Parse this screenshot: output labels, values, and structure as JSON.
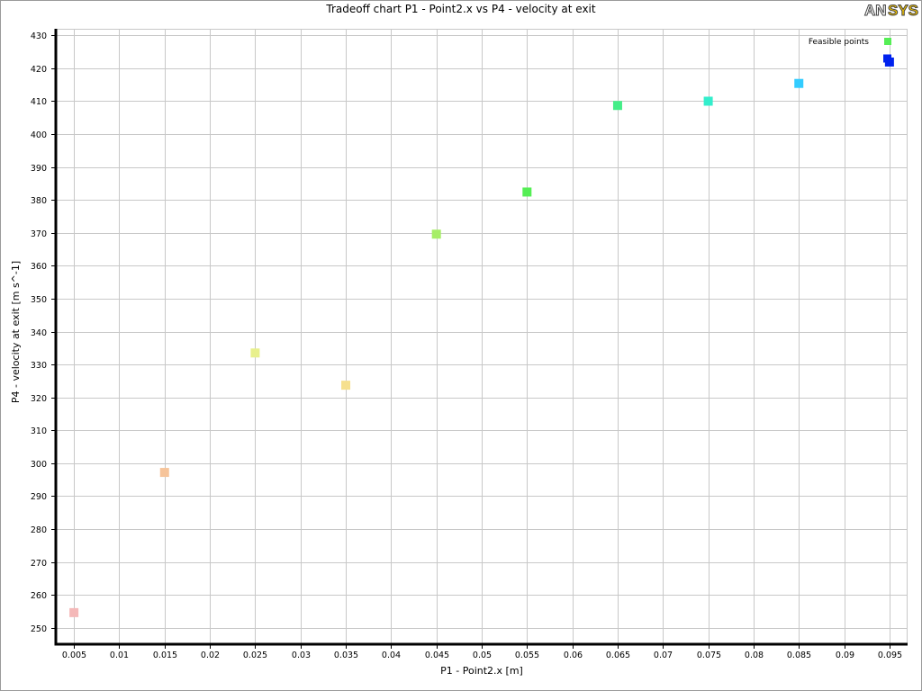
{
  "chart_data": {
    "type": "scatter",
    "title": "Tradeoff chart P1 - Point2.x vs P4 - velocity at exit",
    "xlabel": "P1 - Point2.x  [m]",
    "ylabel": "P4 - velocity at exit  [m s^-1]",
    "xlim": [
      0.003,
      0.097
    ],
    "ylim": [
      245,
      432
    ],
    "x_ticks": [
      0.005,
      0.01,
      0.015,
      0.02,
      0.025,
      0.03,
      0.035,
      0.04,
      0.045,
      0.05,
      0.055,
      0.06,
      0.065,
      0.07,
      0.075,
      0.08,
      0.085,
      0.09,
      0.095
    ],
    "x_tick_labels": [
      "0.005",
      "0.01",
      "0.015",
      "0.02",
      "0.025",
      "0.03",
      "0.035",
      "0.04",
      "0.045",
      "0.05",
      "0.055",
      "0.06",
      "0.065",
      "0.07",
      "0.075",
      "0.08",
      "0.085",
      "0.09",
      "0.095"
    ],
    "y_ticks": [
      250,
      260,
      270,
      280,
      290,
      300,
      310,
      320,
      330,
      340,
      350,
      360,
      370,
      380,
      390,
      400,
      410,
      420,
      430
    ],
    "y_tick_labels": [
      "250",
      "260",
      "270",
      "280",
      "290",
      "300",
      "310",
      "320",
      "330",
      "340",
      "350",
      "360",
      "370",
      "380",
      "390",
      "400",
      "410",
      "420",
      "430"
    ],
    "grid": true,
    "legend": {
      "placement": "top-right",
      "entries": [
        {
          "label": "Feasible points",
          "color": "#55ee55"
        },
        {
          "label": "",
          "color": "#0022ee"
        }
      ]
    },
    "series": [
      {
        "points": [
          {
            "x": 0.005,
            "y": 254.6,
            "color": "#f4b8b8"
          },
          {
            "x": 0.015,
            "y": 297.2,
            "color": "#f6c49a"
          },
          {
            "x": 0.025,
            "y": 333.5,
            "color": "#e8f08c"
          },
          {
            "x": 0.035,
            "y": 323.7,
            "color": "#f6e08e"
          },
          {
            "x": 0.045,
            "y": 369.6,
            "color": "#a6ee66"
          },
          {
            "x": 0.055,
            "y": 382.4,
            "color": "#55ee55"
          },
          {
            "x": 0.065,
            "y": 408.7,
            "color": "#44ee88"
          },
          {
            "x": 0.075,
            "y": 410.0,
            "color": "#33eecc"
          },
          {
            "x": 0.085,
            "y": 415.4,
            "color": "#33ccff"
          },
          {
            "x": 0.095,
            "y": 421.9,
            "color": "#0022ee"
          }
        ]
      }
    ]
  },
  "logo": {
    "text_an": "AN",
    "text_sys": "SYS"
  }
}
